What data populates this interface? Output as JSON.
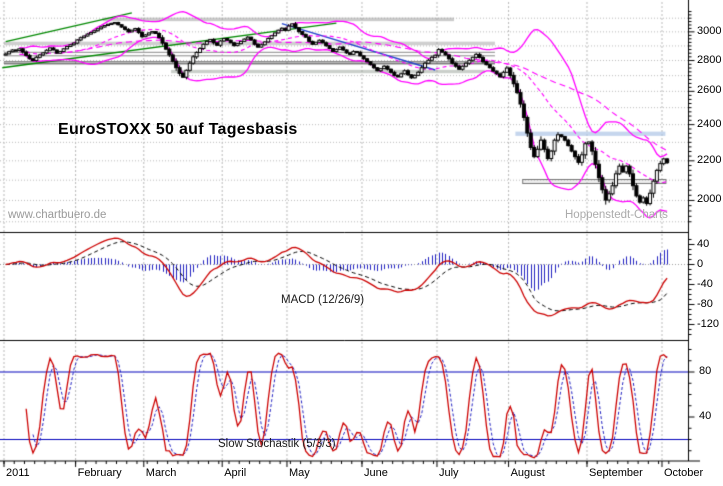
{
  "chart_data": {
    "type": "candlestick",
    "title": "EuroSTOXX 50 auf Tagesbasis",
    "watermark_left": "www.chartbuero.de",
    "watermark_right": "Hoppenstedt-Charts",
    "months": [
      {
        "label": "2011",
        "days": 21
      },
      {
        "label": "February",
        "days": 20
      },
      {
        "label": "March",
        "days": 23
      },
      {
        "label": "April",
        "days": 19
      },
      {
        "label": "May",
        "days": 22
      },
      {
        "label": "June",
        "days": 22
      },
      {
        "label": "July",
        "days": 21
      },
      {
        "label": "August",
        "days": 23
      },
      {
        "label": "September",
        "days": 22
      },
      {
        "label": "October",
        "days": 2
      }
    ],
    "price_axis": {
      "scale": "log",
      "major_ticks": [
        3000,
        2800,
        2600,
        2400,
        2200,
        2000
      ],
      "gridline_step": 100,
      "minor_tick_step": 25,
      "grid_min": 1900,
      "grid_max": 3100
    },
    "candles_daily_close": [
      2845,
      2860,
      2872,
      2868,
      2880,
      2858,
      2835,
      2812,
      2800,
      2822,
      2838,
      2852,
      2870,
      2886,
      2872,
      2850,
      2862,
      2880,
      2896,
      2908,
      2920,
      2942,
      2958,
      2970,
      2984,
      2996,
      3008,
      3022,
      3035,
      3046,
      3055,
      3062,
      3068,
      3052,
      3035,
      3018,
      3000,
      3012,
      3024,
      2995,
      2965,
      2978,
      2992,
      3002,
      2988,
      2958,
      2920,
      2878,
      2838,
      2795,
      2752,
      2715,
      2690,
      2735,
      2782,
      2825,
      2855,
      2882,
      2912,
      2932,
      2946,
      2922,
      2905,
      2935,
      2952,
      2940,
      2922,
      2902,
      2916,
      2932,
      2948,
      2962,
      2942,
      2912,
      2892,
      2908,
      2928,
      2952,
      2972,
      2992,
      3012,
      3026,
      3011,
      3042,
      3058,
      3030,
      3002,
      2982,
      2962,
      2932,
      2912,
      2926,
      2940,
      2922,
      2902,
      2882,
      2862,
      2876,
      2892,
      2872,
      2852,
      2842,
      2862,
      2856,
      2832,
      2812,
      2792,
      2772,
      2752,
      2732,
      2746,
      2762,
      2742,
      2722,
      2702,
      2692,
      2712,
      2732,
      2706,
      2686,
      2702,
      2722,
      2752,
      2782,
      2802,
      2822,
      2836,
      2875,
      2858,
      2838,
      2812,
      2782,
      2762,
      2742,
      2762,
      2782,
      2802,
      2822,
      2842,
      2820,
      2792,
      2772,
      2752,
      2730,
      2712,
      2692,
      2722,
      2750,
      2702,
      2648,
      2592,
      2522,
      2442,
      2352,
      2272,
      2222,
      2262,
      2312,
      2262,
      2212,
      2252,
      2312,
      2342,
      2332,
      2312,
      2282,
      2252,
      2222,
      2192,
      2232,
      2292,
      2302,
      2252,
      2182,
      2112,
      2052,
      2002,
      2032,
      2072,
      2132,
      2172,
      2142,
      2172,
      2132,
      2072,
      2022,
      1992,
      2012,
      1985,
      2035,
      2095,
      2150,
      2185,
      2210,
      2190
    ],
    "overlays": {
      "bollinger": {
        "period": 20,
        "stddev_mult": 2,
        "color": "#ff00ff"
      },
      "sma_long": {
        "period": 50,
        "color": "#ff00ff"
      },
      "trendlines": [
        {
          "name": "rising-channel-upper-jan-feb",
          "color": "#008800",
          "from_day": 0,
          "from_price": 2930,
          "to_day": 37,
          "to_price": 3140
        },
        {
          "name": "rising-support-jan-to-may",
          "color": "#008800",
          "from_day": -1,
          "from_price": 2752,
          "to_day": 97,
          "to_price": 3064
        },
        {
          "name": "falling-resistance-may-to-july",
          "color": "#2244cc",
          "from_day": 81,
          "from_price": 3060,
          "to_day": 126,
          "to_price": 2737
        }
      ],
      "zones": [
        {
          "name": "resistance-3090",
          "type": "bar",
          "color": "rgba(160,160,160,0.55)",
          "price_top": 3105,
          "price_bottom": 3078,
          "from_day": 29,
          "to_day": 132
        },
        {
          "name": "resistance-2920",
          "type": "bar",
          "color": "rgba(160,160,160,0.5)",
          "price_top": 2930,
          "price_bottom": 2905,
          "from_day": 0,
          "to_day": 144
        },
        {
          "name": "level-2850",
          "type": "lines",
          "color": "#888888",
          "prices": [
            2856,
            2832
          ],
          "from_day": 0,
          "to_day": 144
        },
        {
          "name": "level-2790",
          "type": "lines",
          "color": "#444444",
          "prices": [
            2791,
            2778
          ],
          "from_day": 0,
          "to_day": 144
        },
        {
          "name": "support-2725",
          "type": "bar",
          "color": "rgba(150,160,150,0.5)",
          "price_top": 2738,
          "price_bottom": 2716,
          "from_day": 49,
          "to_day": 141
        },
        {
          "name": "resistance-2345",
          "type": "bar",
          "color": "rgba(173,196,230,0.7)",
          "price_top": 2360,
          "price_bottom": 2336,
          "from_day": 150,
          "to_day": 194
        },
        {
          "name": "support-2090",
          "type": "box",
          "color": "#777777",
          "price_top": 2104,
          "price_bottom": 2082,
          "from_day": 152,
          "to_day": 194
        }
      ]
    },
    "macd": {
      "label": "MACD (12/26/9)",
      "fast": 12,
      "slow": 26,
      "signal": 9,
      "axis_ticks": [
        40,
        0,
        -40,
        -80,
        -120
      ],
      "line_color": "#cc0000",
      "signal_color": "#000000",
      "histogram_color": "#2020c0"
    },
    "stochastic": {
      "label": "Slow Stochastik (5/3/3)",
      "k_period": 5,
      "k_smoothing": 3,
      "d_period": 3,
      "axis_ticks": [
        80,
        40
      ],
      "level_lines": [
        80,
        20
      ],
      "k_color": "#cc0000",
      "d_color": "#2020c0",
      "level_color": "#0000bb"
    }
  }
}
